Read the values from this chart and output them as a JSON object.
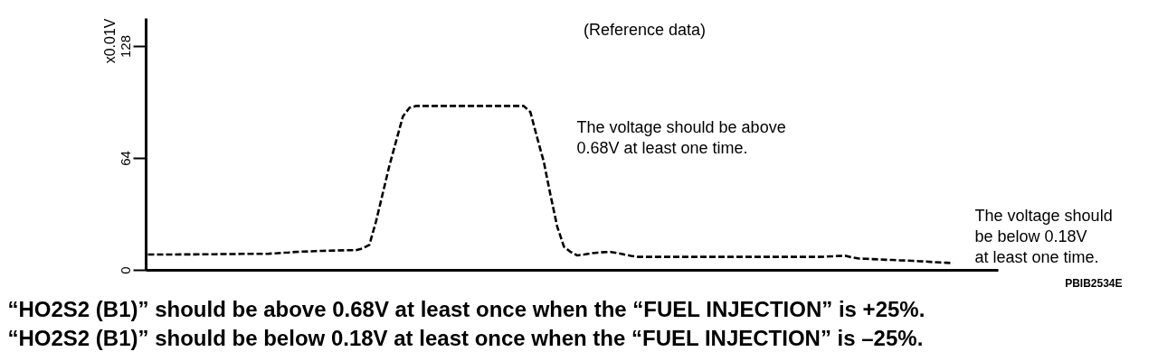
{
  "chart_data": {
    "type": "line",
    "title": "(Reference data)",
    "ylabel": "x0.01V",
    "categories": [
      null,
      null,
      null,
      null,
      null,
      null,
      null,
      null,
      null,
      null,
      null,
      null,
      null,
      null,
      null,
      null,
      null,
      null,
      null,
      null,
      null,
      null,
      null,
      null,
      null,
      null,
      null,
      null,
      null,
      null,
      null,
      null,
      null,
      null,
      null,
      null,
      null,
      null,
      null,
      null,
      null,
      null,
      null,
      null,
      null,
      null,
      null,
      null,
      null,
      null,
      null,
      null,
      null,
      null,
      null,
      null,
      null,
      null,
      null,
      null,
      null,
      null,
      null,
      null,
      null,
      null,
      null,
      null,
      null,
      null,
      null,
      null,
      null,
      null,
      null,
      null,
      null,
      null,
      null,
      null,
      null,
      null,
      null,
      null,
      null,
      null,
      null,
      null,
      null,
      null,
      null,
      null,
      null,
      null,
      null,
      null,
      null,
      null,
      null,
      null,
      null,
      null,
      null,
      null,
      null,
      null,
      null,
      null,
      null,
      null,
      null,
      null,
      null,
      null,
      null,
      null,
      null,
      null,
      null,
      null,
      null
    ],
    "series": [
      {
        "color": "#000000",
        "values": [
          9,
          9,
          9,
          9,
          9,
          9.1,
          9.1,
          9.1,
          9.2,
          9.2,
          9.2,
          9.3,
          9.3,
          9.3,
          9.4,
          9.4,
          9.4,
          9.4,
          9.5,
          9.7,
          10,
          10.2,
          10.5,
          10.7,
          10.8,
          11,
          11.1,
          11.2,
          11.3,
          11.4,
          11.5,
          11.5,
          12.5,
          14.5,
          28,
          44,
          60,
          74,
          88,
          93,
          94,
          94,
          94,
          94,
          94,
          94,
          94,
          94,
          94,
          94,
          94,
          94,
          94,
          94,
          94,
          94,
          94,
          90.5,
          76,
          62,
          43,
          25,
          13.5,
          10.5,
          8.5,
          9,
          9.7,
          10.1,
          10.4,
          10.5,
          9.8,
          9,
          8.3,
          7.7,
          7.7,
          7.7,
          7.7,
          7.7,
          7.7,
          7.7,
          7.7,
          7.7,
          7.7,
          7.7,
          7.7,
          7.7,
          7.7,
          7.7,
          7.7,
          7.7,
          7.7,
          7.7,
          7.7,
          7.7,
          7.7,
          7.7,
          7.7,
          7.7,
          7.7,
          7.7,
          7.7,
          7.8,
          8,
          8.2,
          8.3,
          7.3,
          6.7,
          6.6,
          6.4,
          6.2,
          6,
          5.9,
          5.7,
          5.6,
          5.4,
          5.2,
          5,
          4.7,
          4.5,
          4.3,
          4.1
        ]
      }
    ],
    "ylim": [
      0,
      144
    ],
    "yticks": [
      0,
      64,
      128
    ],
    "tick_labels": "y",
    "grid": false,
    "line_style": "dashed",
    "annotations": [
      "The voltage should be above\n0.68V at least one time.",
      "The voltage should\nbe below 0.18V\nat least one time.",
      "PBIB2534E",
      "“HO2S2 (B1)” should be above 0.68V at least once when the “FUEL INJECTION” is +25%.",
      "“HO2S2 (B1)” should be below 0.18V at least once when the “FUEL INJECTION” is –25%."
    ]
  }
}
